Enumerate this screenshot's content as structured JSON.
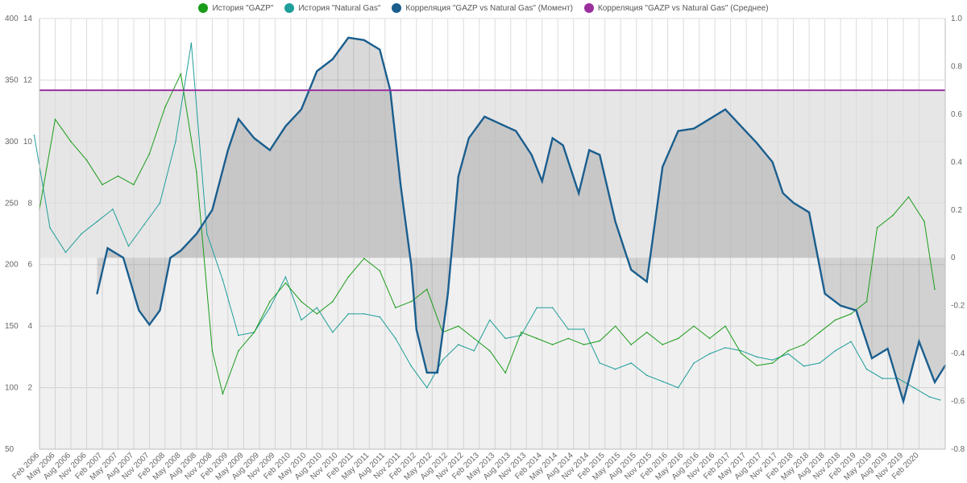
{
  "legend": [
    {
      "label": "История \"GAZP\"",
      "color": "#1a9c1a"
    },
    {
      "label": "История \"Natural Gas\"",
      "color": "#1f9e9a"
    },
    {
      "label": "Корреляция \"GAZP vs Natural Gas\" (Момент)",
      "color": "#1a5e8e"
    },
    {
      "label": "Корреляция \"GAZP vs Natural Gas\" (Среднее)",
      "color": "#9b2f9e"
    }
  ],
  "chart_data": {
    "type": "line",
    "title": "",
    "x_tick_labels": [
      "Feb 2006",
      "May 2006",
      "Aug 2006",
      "Nov 2006",
      "Feb 2007",
      "May 2007",
      "Aug 2007",
      "Nov 2007",
      "Feb 2008",
      "May 2008",
      "Aug 2008",
      "Nov 2008",
      "Feb 2009",
      "May 2009",
      "Aug 2009",
      "Nov 2009",
      "Feb 2010",
      "May 2010",
      "Aug 2010",
      "Nov 2010",
      "Feb 2011",
      "May 2011",
      "Aug 2011",
      "Nov 2011",
      "Feb 2012",
      "May 2012",
      "Aug 2012",
      "Nov 2012",
      "Feb 2013",
      "May 2013",
      "Aug 2013",
      "Nov 2013",
      "Feb 2014",
      "May 2014",
      "Aug 2014",
      "Nov 2014",
      "Feb 2015",
      "May 2015",
      "Aug 2015",
      "Nov 2015",
      "Feb 2016",
      "May 2016",
      "Aug 2016",
      "Nov 2016",
      "Feb 2017",
      "May 2017",
      "Aug 2017",
      "Nov 2017",
      "Feb 2018",
      "May 2018",
      "Aug 2018",
      "Nov 2018",
      "Feb 2019",
      "May 2019",
      "Aug 2019",
      "Nov 2019",
      "Feb 2020"
    ],
    "axes": {
      "left_gazp": {
        "ticks": [
          50,
          100,
          150,
          200,
          250,
          300,
          350,
          400
        ],
        "range": [
          50,
          400
        ]
      },
      "left_gas": {
        "ticks": [
          2,
          4,
          6,
          8,
          10,
          12,
          14
        ],
        "range": [
          0,
          14
        ]
      },
      "right_corr": {
        "ticks": [
          -0.8,
          -0.6,
          -0.4,
          -0.2,
          0,
          0.2,
          0.4,
          0.6,
          0.8,
          1.0
        ],
        "tick_labels": [
          "-0.8",
          "-0.6",
          "-0.4",
          "-0.2",
          "0",
          "0.2",
          "0.4",
          "0.6",
          "0.8",
          "1.0"
        ],
        "range": [
          -0.8,
          1.0
        ]
      }
    },
    "grid": true,
    "legend_position": "top",
    "series": [
      {
        "name": "История \"GAZP\"",
        "color": "#1a9c1a",
        "axis": "left_gazp",
        "style": "thin",
        "points": [
          [
            "2006-02",
            245
          ],
          [
            "2006-05",
            318
          ],
          [
            "2006-08",
            300
          ],
          [
            "2006-11",
            285
          ],
          [
            "2007-02",
            265
          ],
          [
            "2007-05",
            272
          ],
          [
            "2007-08",
            265
          ],
          [
            "2007-11",
            290
          ],
          [
            "2008-02",
            328
          ],
          [
            "2008-05",
            355
          ],
          [
            "2008-08",
            275
          ],
          [
            "2008-11",
            130
          ],
          [
            "2009-01",
            95
          ],
          [
            "2009-04",
            130
          ],
          [
            "2009-07",
            145
          ],
          [
            "2009-10",
            170
          ],
          [
            "2010-01",
            185
          ],
          [
            "2010-04",
            170
          ],
          [
            "2010-07",
            160
          ],
          [
            "2010-10",
            170
          ],
          [
            "2011-01",
            190
          ],
          [
            "2011-04",
            205
          ],
          [
            "2011-07",
            195
          ],
          [
            "2011-10",
            165
          ],
          [
            "2012-01",
            170
          ],
          [
            "2012-04",
            180
          ],
          [
            "2012-07",
            145
          ],
          [
            "2012-10",
            150
          ],
          [
            "2013-01",
            140
          ],
          [
            "2013-04",
            130
          ],
          [
            "2013-07",
            112
          ],
          [
            "2013-10",
            145
          ],
          [
            "2014-01",
            140
          ],
          [
            "2014-04",
            135
          ],
          [
            "2014-07",
            140
          ],
          [
            "2014-10",
            135
          ],
          [
            "2015-01",
            138
          ],
          [
            "2015-04",
            150
          ],
          [
            "2015-07",
            135
          ],
          [
            "2015-10",
            145
          ],
          [
            "2016-01",
            135
          ],
          [
            "2016-04",
            140
          ],
          [
            "2016-07",
            150
          ],
          [
            "2016-10",
            140
          ],
          [
            "2017-01",
            150
          ],
          [
            "2017-04",
            128
          ],
          [
            "2017-07",
            118
          ],
          [
            "2017-10",
            120
          ],
          [
            "2018-01",
            130
          ],
          [
            "2018-04",
            135
          ],
          [
            "2018-07",
            145
          ],
          [
            "2018-10",
            155
          ],
          [
            "2019-01",
            160
          ],
          [
            "2019-04",
            170
          ],
          [
            "2019-06",
            230
          ],
          [
            "2019-09",
            240
          ],
          [
            "2019-12",
            255
          ],
          [
            "2020-03",
            235
          ],
          [
            "2020-05",
            180
          ]
        ]
      },
      {
        "name": "История \"Natural Gas\"",
        "color": "#1f9e9a",
        "axis": "left_gas",
        "style": "thin",
        "points": [
          [
            "2006-01",
            10.2
          ],
          [
            "2006-04",
            7.2
          ],
          [
            "2006-07",
            6.4
          ],
          [
            "2006-10",
            7.0
          ],
          [
            "2007-01",
            7.4
          ],
          [
            "2007-04",
            7.8
          ],
          [
            "2007-07",
            6.6
          ],
          [
            "2007-10",
            7.3
          ],
          [
            "2008-01",
            8.0
          ],
          [
            "2008-04",
            10.0
          ],
          [
            "2008-07",
            13.2
          ],
          [
            "2008-10",
            7.0
          ],
          [
            "2009-01",
            5.5
          ],
          [
            "2009-04",
            3.7
          ],
          [
            "2009-07",
            3.8
          ],
          [
            "2009-10",
            4.6
          ],
          [
            "2010-01",
            5.6
          ],
          [
            "2010-04",
            4.2
          ],
          [
            "2010-07",
            4.6
          ],
          [
            "2010-10",
            3.8
          ],
          [
            "2011-01",
            4.4
          ],
          [
            "2011-04",
            4.4
          ],
          [
            "2011-07",
            4.3
          ],
          [
            "2011-10",
            3.6
          ],
          [
            "2012-01",
            2.7
          ],
          [
            "2012-04",
            2.0
          ],
          [
            "2012-07",
            2.9
          ],
          [
            "2012-10",
            3.4
          ],
          [
            "2013-01",
            3.2
          ],
          [
            "2013-04",
            4.2
          ],
          [
            "2013-07",
            3.6
          ],
          [
            "2013-10",
            3.7
          ],
          [
            "2014-01",
            4.6
          ],
          [
            "2014-04",
            4.6
          ],
          [
            "2014-07",
            3.9
          ],
          [
            "2014-10",
            3.9
          ],
          [
            "2015-01",
            2.8
          ],
          [
            "2015-04",
            2.6
          ],
          [
            "2015-07",
            2.8
          ],
          [
            "2015-10",
            2.4
          ],
          [
            "2016-01",
            2.2
          ],
          [
            "2016-04",
            2.0
          ],
          [
            "2016-07",
            2.8
          ],
          [
            "2016-10",
            3.1
          ],
          [
            "2017-01",
            3.3
          ],
          [
            "2017-04",
            3.2
          ],
          [
            "2017-07",
            3.0
          ],
          [
            "2017-10",
            2.9
          ],
          [
            "2018-01",
            3.1
          ],
          [
            "2018-04",
            2.7
          ],
          [
            "2018-07",
            2.8
          ],
          [
            "2018-10",
            3.2
          ],
          [
            "2019-01",
            3.5
          ],
          [
            "2019-04",
            2.6
          ],
          [
            "2019-07",
            2.3
          ],
          [
            "2019-10",
            2.3
          ],
          [
            "2020-01",
            2.0
          ],
          [
            "2020-04",
            1.7
          ],
          [
            "2020-06",
            1.6
          ]
        ]
      },
      {
        "name": "Корреляция \"GAZP vs Natural Gas\" (Момент)",
        "color": "#1a5e8e",
        "axis": "right_corr",
        "style": "thick",
        "fill": true,
        "points": [
          [
            "2007-01",
            -0.15
          ],
          [
            "2007-03",
            0.04
          ],
          [
            "2007-06",
            0.0
          ],
          [
            "2007-09",
            -0.22
          ],
          [
            "2007-11",
            -0.28
          ],
          [
            "2008-01",
            -0.22
          ],
          [
            "2008-03",
            0.0
          ],
          [
            "2008-05",
            0.03
          ],
          [
            "2008-08",
            0.1
          ],
          [
            "2008-11",
            0.2
          ],
          [
            "2009-02",
            0.45
          ],
          [
            "2009-04",
            0.58
          ],
          [
            "2009-07",
            0.5
          ],
          [
            "2009-10",
            0.45
          ],
          [
            "2010-01",
            0.55
          ],
          [
            "2010-04",
            0.62
          ],
          [
            "2010-07",
            0.78
          ],
          [
            "2010-10",
            0.83
          ],
          [
            "2011-01",
            0.92
          ],
          [
            "2011-04",
            0.91
          ],
          [
            "2011-07",
            0.87
          ],
          [
            "2011-09",
            0.7
          ],
          [
            "2011-11",
            0.3
          ],
          [
            "2012-01",
            -0.03
          ],
          [
            "2012-02",
            -0.3
          ],
          [
            "2012-04",
            -0.48
          ],
          [
            "2012-06",
            -0.48
          ],
          [
            "2012-08",
            -0.15
          ],
          [
            "2012-10",
            0.34
          ],
          [
            "2012-12",
            0.5
          ],
          [
            "2013-03",
            0.59
          ],
          [
            "2013-06",
            0.56
          ],
          [
            "2013-09",
            0.53
          ],
          [
            "2013-12",
            0.43
          ],
          [
            "2014-02",
            0.32
          ],
          [
            "2014-04",
            0.5
          ],
          [
            "2014-06",
            0.47
          ],
          [
            "2014-09",
            0.27
          ],
          [
            "2014-11",
            0.45
          ],
          [
            "2015-01",
            0.43
          ],
          [
            "2015-04",
            0.15
          ],
          [
            "2015-07",
            -0.05
          ],
          [
            "2015-10",
            -0.1
          ],
          [
            "2016-01",
            0.38
          ],
          [
            "2016-04",
            0.53
          ],
          [
            "2016-07",
            0.54
          ],
          [
            "2016-10",
            0.58
          ],
          [
            "2017-01",
            0.62
          ],
          [
            "2017-04",
            0.55
          ],
          [
            "2017-07",
            0.48
          ],
          [
            "2017-10",
            0.4
          ],
          [
            "2017-12",
            0.27
          ],
          [
            "2018-02",
            0.23
          ],
          [
            "2018-05",
            0.19
          ],
          [
            "2018-08",
            -0.15
          ],
          [
            "2018-11",
            -0.2
          ],
          [
            "2019-02",
            -0.22
          ],
          [
            "2019-05",
            -0.42
          ],
          [
            "2019-08",
            -0.38
          ],
          [
            "2019-11",
            -0.6
          ],
          [
            "2020-02",
            -0.35
          ],
          [
            "2020-05",
            -0.52
          ],
          [
            "2020-07",
            -0.45
          ]
        ]
      },
      {
        "name": "Корреляция \"GAZP vs Natural Gas\" (Среднее)",
        "color": "#9b2f9e",
        "axis": "right_corr",
        "style": "flat",
        "constant": 0.7
      }
    ]
  }
}
